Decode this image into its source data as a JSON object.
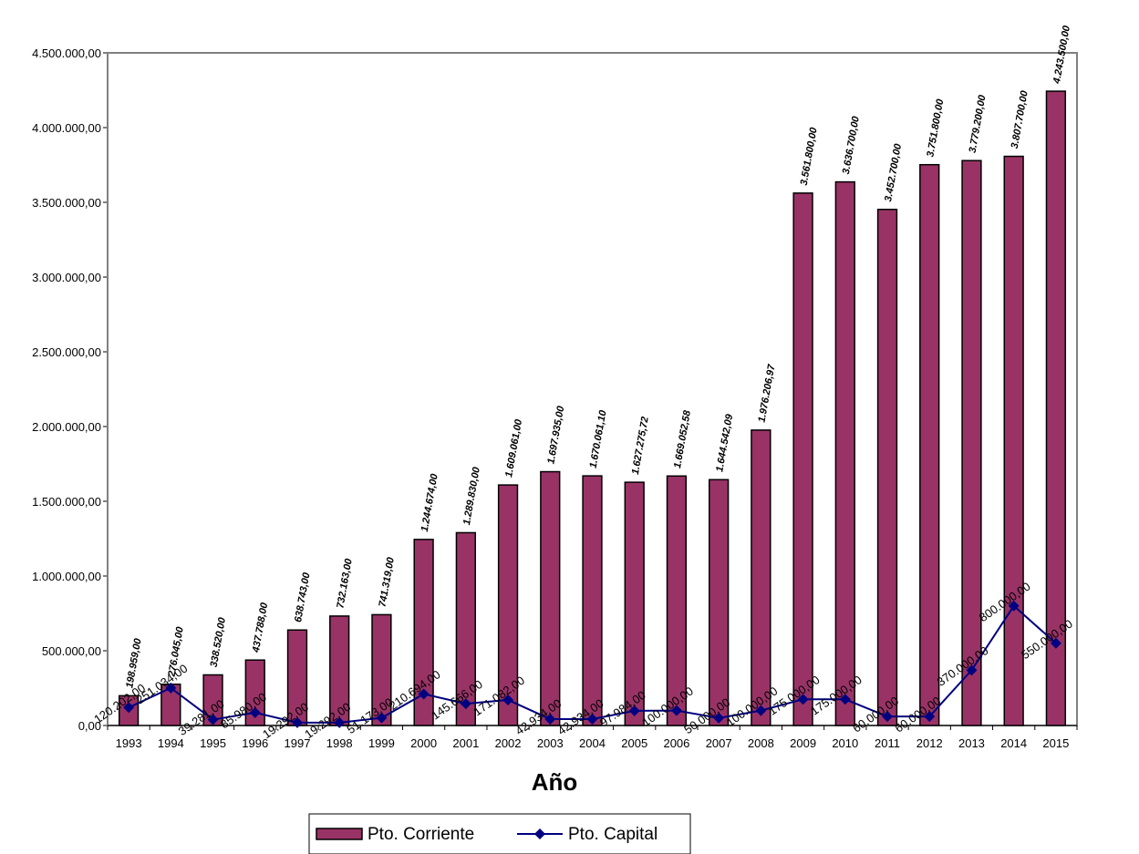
{
  "chart_data": {
    "type": "bar",
    "xlabel": "Año",
    "ylabel": "",
    "ylim": [
      0,
      4500000
    ],
    "y_ticks": [
      "0,00",
      "500.000,00",
      "1.000.000,00",
      "1.500.000,00",
      "2.000.000,00",
      "2.500.000,00",
      "3.000.000,00",
      "3.500.000,00",
      "4.000.000,00",
      "4.500.000,00"
    ],
    "categories": [
      "1993",
      "1994",
      "1995",
      "1996",
      "1997",
      "1998",
      "1999",
      "2000",
      "2001",
      "2002",
      "2003",
      "2004",
      "2005",
      "2006",
      "2007",
      "2008",
      "2009",
      "2010",
      "2011",
      "2012",
      "2013",
      "2014",
      "2015"
    ],
    "legend_position": "bottom",
    "series": [
      {
        "name": "Pto. Corriente",
        "type": "bar",
        "color": "#993366",
        "values": [
          198959,
          276045,
          338520,
          437788,
          638743,
          732163,
          741319,
          1244674,
          1289830,
          1609061,
          1697935,
          1670061.1,
          1627275.72,
          1669052.58,
          1644542.09,
          1976206.97,
          3561800,
          3636700,
          3452700,
          3751800,
          3779200,
          3807700,
          4243500
        ],
        "labels": [
          "198.959,00",
          "276.045,00",
          "338.520,00",
          "437.788,00",
          "638.743,00",
          "732.163,00",
          "741.319,00",
          "1.244.674,00",
          "1.289.830,00",
          "1.609.061,00",
          "1.697.935,00",
          "1.670.061,10",
          "1.627.275,72",
          "1.669.052,58",
          "1.644.542,09",
          "1.976.206,97",
          "3.561.800,00",
          "3.636.700,00",
          "3.452.700,00",
          "3.751.800,00",
          "3.779.200,00",
          "3.807.700,00",
          "4.243.500,00"
        ]
      },
      {
        "name": "Pto. Capital",
        "type": "line",
        "color": "#000080",
        "values": [
          120202,
          251034,
          39281,
          85980,
          19292,
          19292,
          51173,
          210694,
          145666,
          171082,
          42934,
          42934,
          97984,
          100000,
          50000,
          100000,
          175000,
          175000,
          60000,
          60000,
          370000,
          800000,
          550000
        ],
        "labels": [
          "120.202,00",
          "251.034,00",
          "39.281,00",
          "85.980,00",
          "19.292,00",
          "19.292,00",
          "51.173,00",
          "210.694,00",
          "145.666,00",
          "171.082,00",
          "42.934,00",
          "42.934,00",
          "97.984,00",
          "100.000,00",
          "50.000,00",
          "100.000,00",
          "175.000,00",
          "175.000,00",
          "60.000,00",
          "60.000,00",
          "370.000,00",
          "800.000,00",
          "550.000,00"
        ]
      }
    ]
  }
}
